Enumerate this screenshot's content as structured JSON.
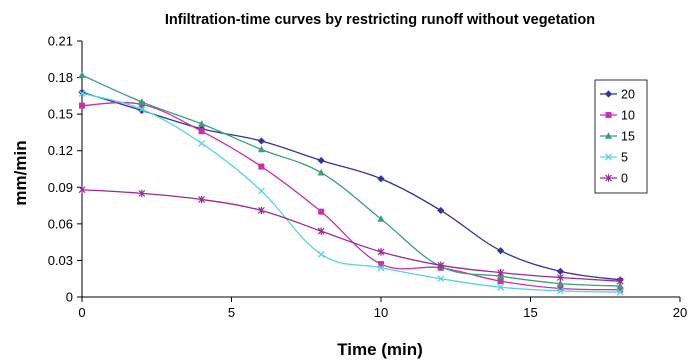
{
  "chart_data": {
    "type": "line",
    "title": "Infiltration-time curves by restricting runoff without vegetation",
    "xlabel": "Time (min)",
    "ylabel": "mm/min",
    "xlim": [
      0,
      20
    ],
    "ylim": [
      0,
      0.21
    ],
    "xticks": [
      "0",
      "5",
      "10",
      "15",
      "20"
    ],
    "yticks": [
      "0",
      "0.03",
      "0.06",
      "0.09",
      "0.12",
      "0.15",
      "0.18",
      "0.21"
    ],
    "grid": false,
    "legend_position": "right",
    "x": [
      0,
      2,
      4,
      6,
      8,
      10,
      12,
      14,
      16,
      18
    ],
    "series": [
      {
        "name": "20",
        "color": "#3333a0",
        "marker": "diamond",
        "values": [
          0.168,
          0.153,
          0.138,
          0.128,
          0.112,
          0.097,
          0.071,
          0.038,
          0.021,
          0.014
        ]
      },
      {
        "name": "10",
        "color": "#cc2fa8",
        "marker": "square",
        "values": [
          0.157,
          0.158,
          0.136,
          0.107,
          0.07,
          0.027,
          0.024,
          0.013,
          0.007,
          0.006
        ]
      },
      {
        "name": "15",
        "color": "#3aa07a",
        "marker": "triangle",
        "values": [
          0.182,
          0.16,
          0.142,
          0.121,
          0.102,
          0.064,
          0.025,
          0.017,
          0.011,
          0.009
        ]
      },
      {
        "name": "5",
        "color": "#55d6df",
        "marker": "x",
        "values": [
          0.167,
          0.154,
          0.126,
          0.087,
          0.035,
          0.024,
          0.015,
          0.008,
          0.005,
          0.004
        ]
      },
      {
        "name": "0",
        "color": "#9a2a9a",
        "marker": "star",
        "values": [
          0.088,
          0.085,
          0.08,
          0.071,
          0.054,
          0.037,
          0.026,
          0.02,
          0.016,
          0.013
        ]
      }
    ]
  }
}
